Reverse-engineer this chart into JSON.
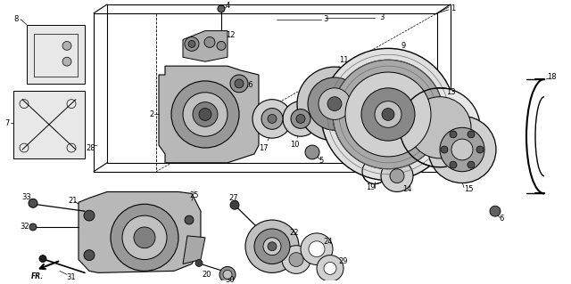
{
  "bg_color": "#ffffff",
  "fig_width": 6.4,
  "fig_height": 3.19,
  "dpi": 100,
  "label_fontsize": 6.0
}
